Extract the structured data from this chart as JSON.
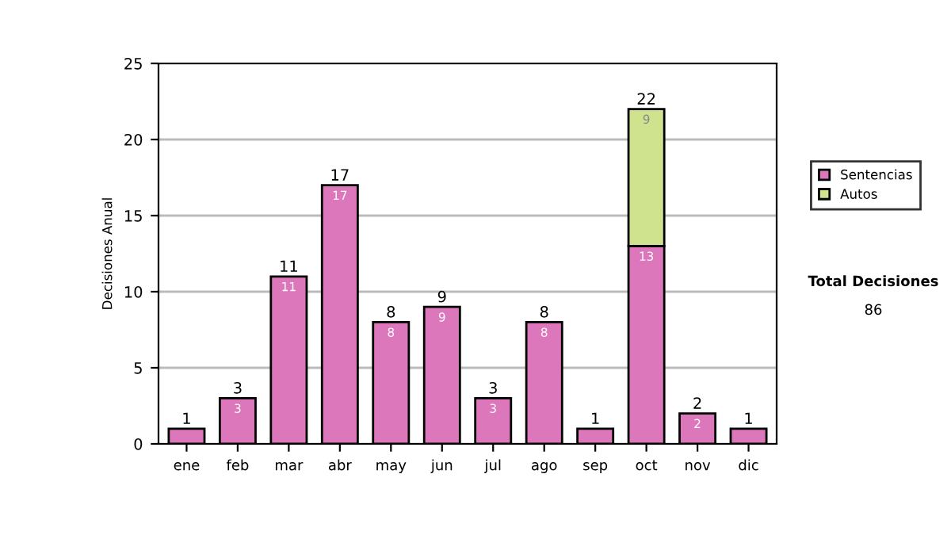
{
  "chart_data": {
    "type": "bar",
    "stacked": true,
    "ylabel": "Decisiones Anual",
    "categories": [
      "ene",
      "feb",
      "mar",
      "abr",
      "may",
      "jun",
      "jul",
      "ago",
      "sep",
      "oct",
      "nov",
      "dic"
    ],
    "series": [
      {
        "name": "Sentencias",
        "color": "#dd77bb",
        "values": [
          1,
          3,
          11,
          17,
          8,
          9,
          3,
          8,
          1,
          13,
          2,
          1
        ],
        "value_labels": [
          null,
          "3",
          "11",
          "17",
          "8",
          "9",
          "3",
          "8",
          null,
          "13",
          "2",
          null
        ]
      },
      {
        "name": "Autos",
        "color": "#cfe38f",
        "values": [
          null,
          null,
          null,
          null,
          null,
          null,
          null,
          null,
          null,
          9,
          null,
          null
        ],
        "value_labels": [
          null,
          null,
          null,
          null,
          null,
          null,
          null,
          null,
          null,
          "9",
          null,
          null
        ]
      }
    ],
    "totals": [
      "1",
      "3",
      "11",
      "17",
      "8",
      "9",
      "3",
      "8",
      "1",
      "22",
      "2",
      "1"
    ],
    "ylim": [
      0,
      25
    ],
    "yticks": [
      0,
      5,
      10,
      15,
      20,
      25
    ],
    "grid": "y",
    "legend": "right",
    "annotations": [
      "Total Decisiones",
      "86"
    ]
  }
}
